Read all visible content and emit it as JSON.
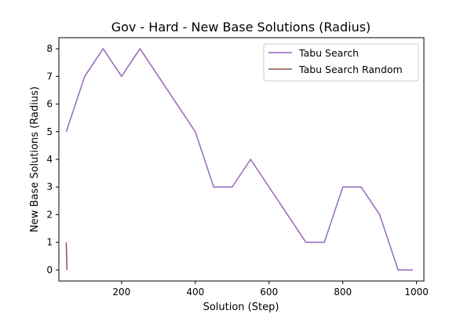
{
  "chart_data": {
    "type": "line",
    "title": "Gov - Hard - New Base Solutions (Radius)",
    "xlabel": "Solution (Step)",
    "ylabel": "New Base Solutions (Radius)",
    "xlim": [
      30,
      1020
    ],
    "ylim": [
      -0.4,
      8.4
    ],
    "xticks": [
      200,
      400,
      600,
      800,
      1000
    ],
    "yticks": [
      0,
      1,
      2,
      3,
      4,
      5,
      6,
      7,
      8
    ],
    "legend_position": "top-right",
    "grid": false,
    "series": [
      {
        "name": "Tabu Search",
        "color": "#9467bd",
        "x": [
          50,
          100,
          150,
          200,
          250,
          300,
          350,
          400,
          450,
          500,
          550,
          600,
          650,
          700,
          750,
          800,
          850,
          900,
          950,
          990
        ],
        "y": [
          5,
          7,
          8,
          7,
          8,
          7,
          6,
          5,
          3,
          3,
          4,
          3,
          2,
          1,
          1,
          3,
          3,
          2,
          0,
          0
        ]
      },
      {
        "name": "Tabu Search Random",
        "color": "#8c564b",
        "x": [
          50,
          52
        ],
        "y": [
          1,
          0
        ]
      }
    ]
  }
}
